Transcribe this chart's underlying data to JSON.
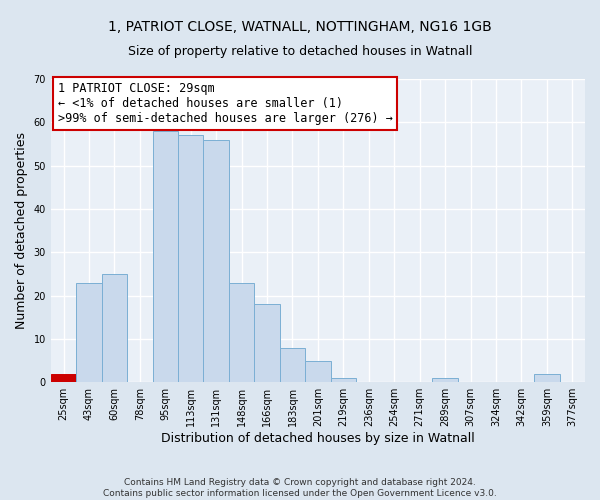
{
  "title_line1": "1, PATRIOT CLOSE, WATNALL, NOTTINGHAM, NG16 1GB",
  "title_line2": "Size of property relative to detached houses in Watnall",
  "xlabel": "Distribution of detached houses by size in Watnall",
  "ylabel": "Number of detached properties",
  "bar_labels": [
    "25sqm",
    "43sqm",
    "60sqm",
    "78sqm",
    "95sqm",
    "113sqm",
    "131sqm",
    "148sqm",
    "166sqm",
    "183sqm",
    "201sqm",
    "219sqm",
    "236sqm",
    "254sqm",
    "271sqm",
    "289sqm",
    "307sqm",
    "324sqm",
    "342sqm",
    "359sqm",
    "377sqm"
  ],
  "bar_values": [
    2,
    23,
    25,
    0,
    58,
    57,
    56,
    23,
    18,
    8,
    5,
    1,
    0,
    0,
    0,
    1,
    0,
    0,
    0,
    2,
    0
  ],
  "bar_color": "#c9d9ec",
  "bar_edge_color": "#7bafd4",
  "highlight_bar_index": 0,
  "highlight_bar_color": "#cc0000",
  "highlight_bar_edge_color": "#cc0000",
  "ylim": [
    0,
    70
  ],
  "yticks": [
    0,
    10,
    20,
    30,
    40,
    50,
    60,
    70
  ],
  "annotation_text": "1 PATRIOT CLOSE: 29sqm\n← <1% of detached houses are smaller (1)\n>99% of semi-detached houses are larger (276) →",
  "annotation_box_color": "#ffffff",
  "annotation_box_edge_color": "#cc0000",
  "footer_line1": "Contains HM Land Registry data © Crown copyright and database right 2024.",
  "footer_line2": "Contains public sector information licensed under the Open Government Licence v3.0.",
  "bg_color": "#dce6f0",
  "plot_bg_color": "#eaf0f7",
  "grid_color": "#ffffff",
  "title_fontsize": 10,
  "subtitle_fontsize": 9,
  "axis_label_fontsize": 9,
  "tick_label_fontsize": 7,
  "annotation_fontsize": 8.5,
  "footer_fontsize": 6.5
}
